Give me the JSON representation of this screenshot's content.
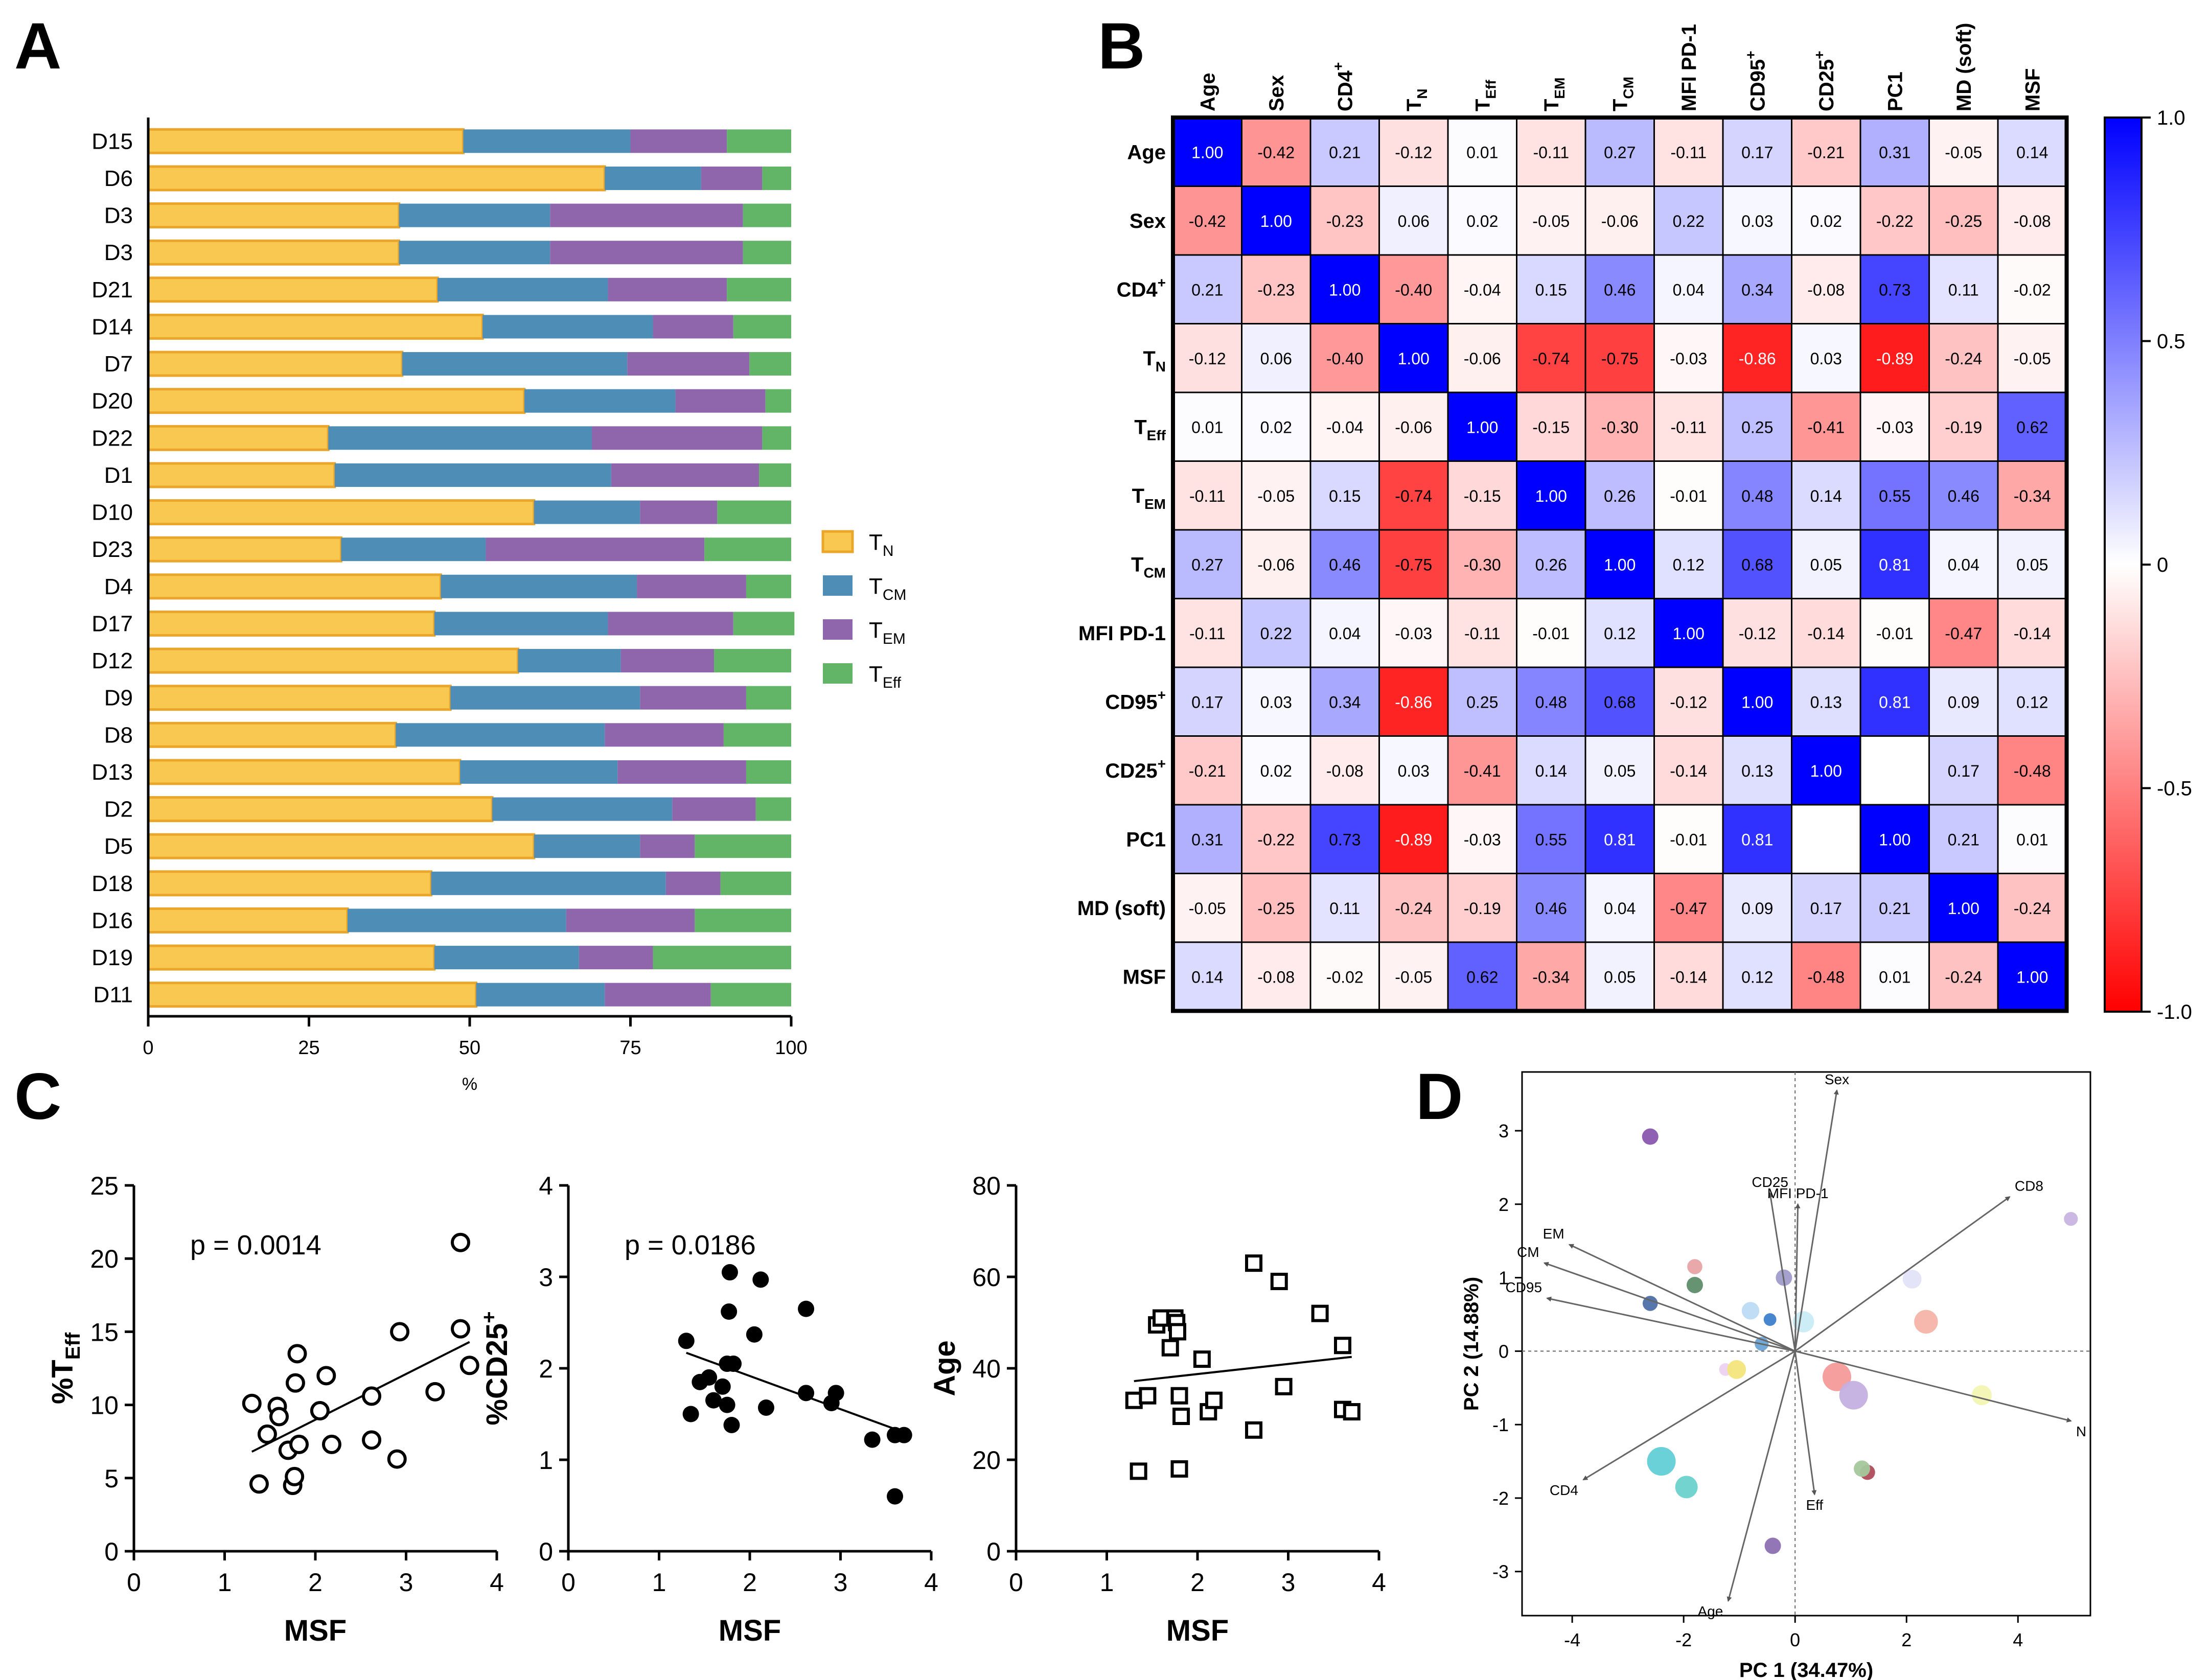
{
  "panel_labels": {
    "a": "A",
    "b": "B",
    "c": "C",
    "d": "D"
  },
  "colors": {
    "tn": "#f9c850",
    "tn_edge": "#e9a62a",
    "tcm": "#4e8db6",
    "tem": "#8f66ab",
    "teff": "#62b467",
    "corr_pos": "#0000ff",
    "corr_neg": "#ff0000"
  },
  "chart_data": [
    {
      "id": "A",
      "type": "bar",
      "orientation": "horizontal",
      "stacked": true,
      "categories": [
        "D15",
        "D6",
        "D3",
        "D3",
        "D21",
        "D14",
        "D7",
        "D20",
        "D22",
        "D1",
        "D10",
        "D23",
        "D4",
        "D17",
        "D12",
        "D9",
        "D8",
        "D13",
        "D2",
        "D5",
        "D18",
        "D16",
        "D19",
        "D11"
      ],
      "series": [
        {
          "name": "TN",
          "label": "T",
          "sub": "N",
          "values": [
            49,
            71,
            39,
            39,
            45,
            52,
            39.5,
            58.5,
            28,
            29,
            60,
            30,
            45.5,
            44.5,
            57.5,
            47,
            38.5,
            48.5,
            53.5,
            60,
            44,
            31,
            44.5,
            51
          ]
        },
        {
          "name": "TCM",
          "label": "T",
          "sub": "CM",
          "values": [
            26,
            15,
            23.5,
            23.5,
            26.5,
            26.5,
            35,
            23.5,
            41,
            43,
            16.5,
            22.5,
            30.5,
            27,
            16,
            29.5,
            32.5,
            24.5,
            28,
            16.5,
            36.5,
            34,
            22.5,
            20
          ]
        },
        {
          "name": "TEM",
          "label": "T",
          "sub": "EM",
          "values": [
            15,
            9.5,
            30,
            30,
            18.5,
            12.5,
            19,
            14,
            26.5,
            23,
            12,
            34,
            17,
            19.5,
            14.5,
            16.5,
            18.5,
            20,
            13,
            8.5,
            8.5,
            20,
            11.5,
            16.5
          ]
        },
        {
          "name": "TEff",
          "label": "T",
          "sub": "Eff",
          "values": [
            10,
            4.5,
            7.5,
            7.5,
            10,
            9,
            6.5,
            4,
            4.5,
            5,
            11.5,
            13.5,
            7,
            9.5,
            12,
            7,
            10.5,
            7,
            5.5,
            15,
            11,
            15,
            21.5,
            12.5
          ]
        }
      ],
      "xlim": [
        0,
        100
      ],
      "xticks": [
        "0",
        "25",
        "50",
        "75",
        "100"
      ],
      "xlabel": "%",
      "legend_position": "right"
    },
    {
      "id": "B",
      "type": "heatmap",
      "variables": [
        {
          "name": "Age",
          "sub": "",
          "sup": ""
        },
        {
          "name": "Sex",
          "sub": "",
          "sup": ""
        },
        {
          "name": "CD4",
          "sub": "",
          "sup": "+"
        },
        {
          "name": "T",
          "sub": "N",
          "sup": ""
        },
        {
          "name": "T",
          "sub": "Eff",
          "sup": ""
        },
        {
          "name": "T",
          "sub": "EM",
          "sup": ""
        },
        {
          "name": "T",
          "sub": "CM",
          "sup": ""
        },
        {
          "name": "MFI PD-1",
          "sub": "",
          "sup": ""
        },
        {
          "name": "CD95",
          "sub": "",
          "sup": "+"
        },
        {
          "name": "CD25",
          "sub": "",
          "sup": "+"
        },
        {
          "name": "PC1",
          "sub": "",
          "sup": ""
        },
        {
          "name": "MD (soft)",
          "sub": "",
          "sup": ""
        },
        {
          "name": "MSF",
          "sub": "",
          "sup": ""
        }
      ],
      "matrix": [
        [
          "1.00",
          "-0.42",
          "0.21",
          "-0.12",
          "0.01",
          "-0.11",
          "0.27",
          "-0.11",
          "0.17",
          "-0.21",
          "0.31",
          "-0.05",
          "0.14"
        ],
        [
          "-0.42",
          "1.00",
          "-0.23",
          "0.06",
          "0.02",
          "-0.05",
          "-0.06",
          "0.22",
          "0.03",
          "0.02",
          "-0.22",
          "-0.25",
          "-0.08"
        ],
        [
          "0.21",
          "-0.23",
          "1.00",
          "-0.40",
          "-0.04",
          "0.15",
          "0.46",
          "0.04",
          "0.34",
          "-0.08",
          "0.73",
          "0.11",
          "-0.02"
        ],
        [
          "-0.12",
          "0.06",
          "-0.40",
          "1.00",
          "-0.06",
          "-0.74",
          "-0.75",
          "-0.03",
          "-0.86",
          "0.03",
          "-0.89",
          "-0.24",
          "-0.05"
        ],
        [
          "0.01",
          "0.02",
          "-0.04",
          "-0.06",
          "1.00",
          "-0.15",
          "-0.30",
          "-0.11",
          "0.25",
          "-0.41",
          "-0.03",
          "-0.19",
          "0.62"
        ],
        [
          "-0.11",
          "-0.05",
          "0.15",
          "-0.74",
          "-0.15",
          "1.00",
          "0.26",
          "-0.01",
          "0.48",
          "0.14",
          "0.55",
          "0.46",
          "-0.34"
        ],
        [
          "0.27",
          "-0.06",
          "0.46",
          "-0.75",
          "-0.30",
          "0.26",
          "1.00",
          "0.12",
          "0.68",
          "0.05",
          "0.81",
          "0.04",
          "0.05"
        ],
        [
          "-0.11",
          "0.22",
          "0.04",
          "-0.03",
          "-0.11",
          "-0.01",
          "0.12",
          "1.00",
          "-0.12",
          "-0.14",
          "-0.01",
          "-0.47",
          "-0.14"
        ],
        [
          "0.17",
          "0.03",
          "0.34",
          "-0.86",
          "0.25",
          "0.48",
          "0.68",
          "-0.12",
          "1.00",
          "0.13",
          "0.81",
          "0.09",
          "0.12"
        ],
        [
          "-0.21",
          "0.02",
          "-0.08",
          "0.03",
          "-0.41",
          "0.14",
          "0.05",
          "-0.14",
          "0.13",
          "1.00",
          "",
          "0.17",
          "-0.48"
        ],
        [
          "0.31",
          "-0.22",
          "0.73",
          "-0.89",
          "-0.03",
          "0.55",
          "0.81",
          "-0.01",
          "0.81",
          "",
          "1.00",
          "0.21",
          "0.01"
        ],
        [
          "-0.05",
          "-0.25",
          "0.11",
          "-0.24",
          "-0.19",
          "0.46",
          "0.04",
          "-0.47",
          "0.09",
          "0.17",
          "0.21",
          "1.00",
          "-0.24"
        ],
        [
          "0.14",
          "-0.08",
          "-0.02",
          "-0.05",
          "0.62",
          "-0.34",
          "0.05",
          "-0.14",
          "0.12",
          "-0.48",
          "0.01",
          "-0.24",
          "1.00"
        ]
      ],
      "colorbar": {
        "range": [
          -1,
          1
        ],
        "tick_values": [
          1,
          0.5,
          0,
          -0.5,
          -1
        ],
        "tick_labels": [
          "1.0",
          "0.5",
          "0",
          "-0.5",
          "-1.0"
        ]
      }
    },
    {
      "id": "C1",
      "type": "scatter",
      "marker": "open-circle",
      "xlabel": "MSF",
      "ylabel": {
        "pre": "%T",
        "sub": "Eff"
      },
      "xlim": [
        0,
        4
      ],
      "ylim": [
        0,
        25
      ],
      "xticks": [
        "0",
        "1",
        "2",
        "3",
        "4"
      ],
      "yticks": [
        "0",
        "5",
        "10",
        "15",
        "20",
        "25"
      ],
      "annotation": "p = 0.0014",
      "fit_line": {
        "x": [
          1.3,
          3.7
        ],
        "y": [
          6.8,
          14.3
        ]
      },
      "points": [
        [
          1.3,
          10.1
        ],
        [
          1.38,
          4.6
        ],
        [
          1.47,
          8
        ],
        [
          1.58,
          9.9
        ],
        [
          1.6,
          9.2
        ],
        [
          1.7,
          6.9
        ],
        [
          1.75,
          4.5
        ],
        [
          1.77,
          5.1
        ],
        [
          1.78,
          11.5
        ],
        [
          1.8,
          13.5
        ],
        [
          1.82,
          7.3
        ],
        [
          2.05,
          9.6
        ],
        [
          2.12,
          12
        ],
        [
          2.18,
          7.3
        ],
        [
          2.62,
          10.6
        ],
        [
          2.62,
          7.6
        ],
        [
          2.9,
          6.3
        ],
        [
          2.93,
          15
        ],
        [
          3.32,
          10.9
        ],
        [
          3.6,
          21.1
        ],
        [
          3.6,
          15.2
        ],
        [
          3.7,
          12.7
        ]
      ]
    },
    {
      "id": "C2",
      "type": "scatter",
      "marker": "filled-circle",
      "xlabel": "MSF",
      "ylabel": {
        "pre": "%CD25",
        "sup": "+"
      },
      "xlim": [
        0,
        4
      ],
      "ylim": [
        0,
        4
      ],
      "xticks": [
        "0",
        "1",
        "2",
        "3",
        "4"
      ],
      "yticks": [
        "0",
        "1",
        "2",
        "3",
        "4"
      ],
      "annotation": "p = 0.0186",
      "fit_line": {
        "x": [
          1.3,
          3.7
        ],
        "y": [
          2.17,
          1.3
        ]
      },
      "points": [
        [
          1.3,
          2.3
        ],
        [
          1.35,
          1.5
        ],
        [
          1.45,
          1.85
        ],
        [
          1.55,
          1.9
        ],
        [
          1.6,
          1.65
        ],
        [
          1.7,
          1.8
        ],
        [
          1.75,
          1.6
        ],
        [
          1.75,
          2.05
        ],
        [
          1.77,
          2.62
        ],
        [
          1.78,
          3.05
        ],
        [
          1.8,
          1.38
        ],
        [
          1.82,
          2.05
        ],
        [
          2.05,
          2.37
        ],
        [
          2.12,
          2.97
        ],
        [
          2.18,
          1.57
        ],
        [
          2.62,
          2.65
        ],
        [
          2.62,
          1.73
        ],
        [
          2.9,
          1.62
        ],
        [
          2.95,
          1.73
        ],
        [
          3.35,
          1.22
        ],
        [
          3.6,
          1.27
        ],
        [
          3.6,
          0.6
        ],
        [
          3.7,
          1.27
        ]
      ]
    },
    {
      "id": "C3",
      "type": "scatter",
      "marker": "open-square",
      "xlabel": "MSF",
      "ylabel": {
        "pre": "Age"
      },
      "xlim": [
        0,
        4
      ],
      "ylim": [
        0,
        80
      ],
      "xticks": [
        "0",
        "1",
        "2",
        "3",
        "4"
      ],
      "yticks": [
        "0",
        "20",
        "40",
        "60",
        "80"
      ],
      "annotation": "",
      "fit_line": {
        "x": [
          1.3,
          3.7
        ],
        "y": [
          37.2,
          42.5
        ]
      },
      "points": [
        [
          1.3,
          33
        ],
        [
          1.35,
          17.5
        ],
        [
          1.45,
          34
        ],
        [
          1.55,
          49.5
        ],
        [
          1.6,
          51
        ],
        [
          1.7,
          44.5
        ],
        [
          1.75,
          51
        ],
        [
          1.77,
          50
        ],
        [
          1.78,
          48
        ],
        [
          1.8,
          18
        ],
        [
          1.8,
          34
        ],
        [
          1.82,
          29.5
        ],
        [
          2.05,
          42
        ],
        [
          2.12,
          30.5
        ],
        [
          2.18,
          33
        ],
        [
          2.62,
          63
        ],
        [
          2.62,
          26.5
        ],
        [
          2.9,
          59
        ],
        [
          2.95,
          36
        ],
        [
          3.35,
          52
        ],
        [
          3.6,
          45
        ],
        [
          3.6,
          31
        ],
        [
          3.7,
          30.5
        ]
      ]
    },
    {
      "id": "D",
      "type": "scatter",
      "subtype": "biplot",
      "xlabel": "PC 1 (34.47%)",
      "ylabel": "PC 2 (14.88%)",
      "xlim": [
        -4.9,
        5.3
      ],
      "ylim": [
        -3.6,
        3.8
      ],
      "xticks": [
        "-4",
        "-2",
        "0",
        "2",
        "4"
      ],
      "yticks": [
        "-3",
        "-2",
        "-1",
        "0",
        "1",
        "2",
        "3"
      ],
      "loadings": [
        {
          "name": "Sex",
          "x": 0.75,
          "y": 3.55
        },
        {
          "name": "CD25",
          "x": -0.45,
          "y": 2.15
        },
        {
          "name": "MFI PD-1",
          "x": 0.05,
          "y": 2.0
        },
        {
          "name": "CD8",
          "x": 3.85,
          "y": 2.1
        },
        {
          "name": "EM",
          "x": -4.05,
          "y": 1.45
        },
        {
          "name": "CM",
          "x": -4.5,
          "y": 1.2
        },
        {
          "name": "CD95",
          "x": -4.45,
          "y": 0.72
        },
        {
          "name": "N",
          "x": 4.95,
          "y": -0.95
        },
        {
          "name": "CD4",
          "x": -3.8,
          "y": -1.75
        },
        {
          "name": "Eff",
          "x": 0.35,
          "y": -1.95
        },
        {
          "name": "Age",
          "x": -1.2,
          "y": -3.4
        }
      ],
      "samples": [
        {
          "x": -2.6,
          "y": 2.92,
          "r": 1.0,
          "color": "#8a57ae"
        },
        {
          "x": 4.95,
          "y": 1.8,
          "r": 0.8,
          "color": "#c8b5e3"
        },
        {
          "x": -1.8,
          "y": 1.15,
          "r": 0.9,
          "color": "#e8a4a5"
        },
        {
          "x": -1.8,
          "y": 0.9,
          "r": 1.0,
          "color": "#5e8e6a"
        },
        {
          "x": 2.1,
          "y": 0.98,
          "r": 1.2,
          "color": "#e3e3f8"
        },
        {
          "x": -0.2,
          "y": 1.0,
          "r": 1.0,
          "color": "#a09ccc"
        },
        {
          "x": -2.6,
          "y": 0.65,
          "r": 0.9,
          "color": "#4e6fa8"
        },
        {
          "x": -0.8,
          "y": 0.55,
          "r": 1.1,
          "color": "#bcdcf4"
        },
        {
          "x": 0.15,
          "y": 0.4,
          "r": 1.4,
          "color": "#c9ecf4"
        },
        {
          "x": -0.45,
          "y": 0.43,
          "r": 0.7,
          "color": "#3f7fce"
        },
        {
          "x": 2.35,
          "y": 0.4,
          "r": 1.6,
          "color": "#f5b3a8"
        },
        {
          "x": -0.6,
          "y": 0.1,
          "r": 0.8,
          "color": "#6aa4d6"
        },
        {
          "x": -1.25,
          "y": -0.25,
          "r": 0.7,
          "color": "#ecd2f0"
        },
        {
          "x": -1.05,
          "y": -0.25,
          "r": 1.2,
          "color": "#f3e67c"
        },
        {
          "x": 0.75,
          "y": -0.35,
          "r": 2.0,
          "color": "#f59a9a"
        },
        {
          "x": 1.05,
          "y": -0.6,
          "r": 2.0,
          "color": "#c4b0e0"
        },
        {
          "x": 3.35,
          "y": -0.6,
          "r": 1.3,
          "color": "#f3f5b4"
        },
        {
          "x": -2.4,
          "y": -1.5,
          "r": 2.0,
          "color": "#62cfd6"
        },
        {
          "x": -1.95,
          "y": -1.85,
          "r": 1.5,
          "color": "#6cd2cc"
        },
        {
          "x": 1.3,
          "y": -1.65,
          "r": 0.9,
          "color": "#b04b5a"
        },
        {
          "x": 1.2,
          "y": -1.6,
          "r": 1.0,
          "color": "#a5c89c"
        },
        {
          "x": -0.4,
          "y": -2.65,
          "r": 1.0,
          "color": "#8d6fb1"
        }
      ]
    }
  ]
}
